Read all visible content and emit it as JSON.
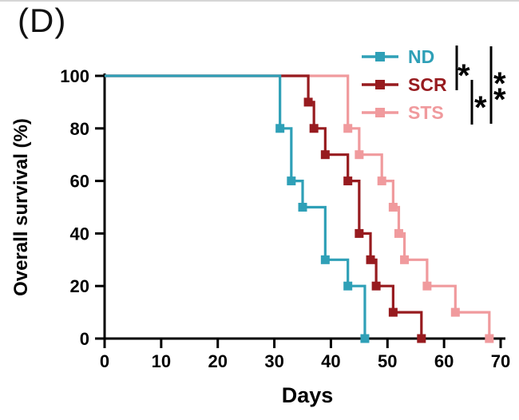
{
  "panel_label": "(D)",
  "colors": {
    "nd": "#2FA0B7",
    "scr": "#971B1F",
    "sts": "#F09A9D",
    "axis": "#000000",
    "background": "#ffffff"
  },
  "chart_data": {
    "type": "line",
    "subtype": "kaplan-meier-survival-step",
    "title": "",
    "xlabel": "Days",
    "ylabel": "Overall survival (%)",
    "xlim": [
      0,
      70
    ],
    "ylim": [
      0,
      100
    ],
    "xticks": [
      0,
      10,
      20,
      30,
      40,
      50,
      60,
      70
    ],
    "yticks": [
      0,
      20,
      40,
      60,
      80,
      100
    ],
    "grid": false,
    "legend_position": "top-right",
    "series": [
      {
        "name": "ND",
        "color": "#2FA0B7",
        "start": [
          0,
          100
        ],
        "steps": [
          [
            31,
            80
          ],
          [
            33,
            60
          ],
          [
            35,
            50
          ],
          [
            39,
            30
          ],
          [
            43,
            20
          ],
          [
            46,
            0
          ]
        ]
      },
      {
        "name": "SCR",
        "color": "#971B1F",
        "start": [
          0,
          100
        ],
        "steps": [
          [
            36,
            90
          ],
          [
            37,
            80
          ],
          [
            39,
            70
          ],
          [
            43,
            60
          ],
          [
            45,
            40
          ],
          [
            47,
            30
          ],
          [
            48,
            20
          ],
          [
            51,
            10
          ],
          [
            56,
            0
          ]
        ]
      },
      {
        "name": "STS",
        "color": "#F09A9D",
        "start": [
          0,
          100
        ],
        "steps": [
          [
            43,
            80
          ],
          [
            45,
            70
          ],
          [
            49,
            60
          ],
          [
            51,
            50
          ],
          [
            52,
            40
          ],
          [
            53,
            30
          ],
          [
            57,
            20
          ],
          [
            62,
            10
          ],
          [
            68,
            0
          ]
        ]
      }
    ],
    "significance": [
      {
        "comparison": "ND vs SCR",
        "label": "*"
      },
      {
        "comparison": "SCR vs STS",
        "label": "*"
      },
      {
        "comparison": "ND vs STS",
        "label": "**"
      }
    ]
  }
}
